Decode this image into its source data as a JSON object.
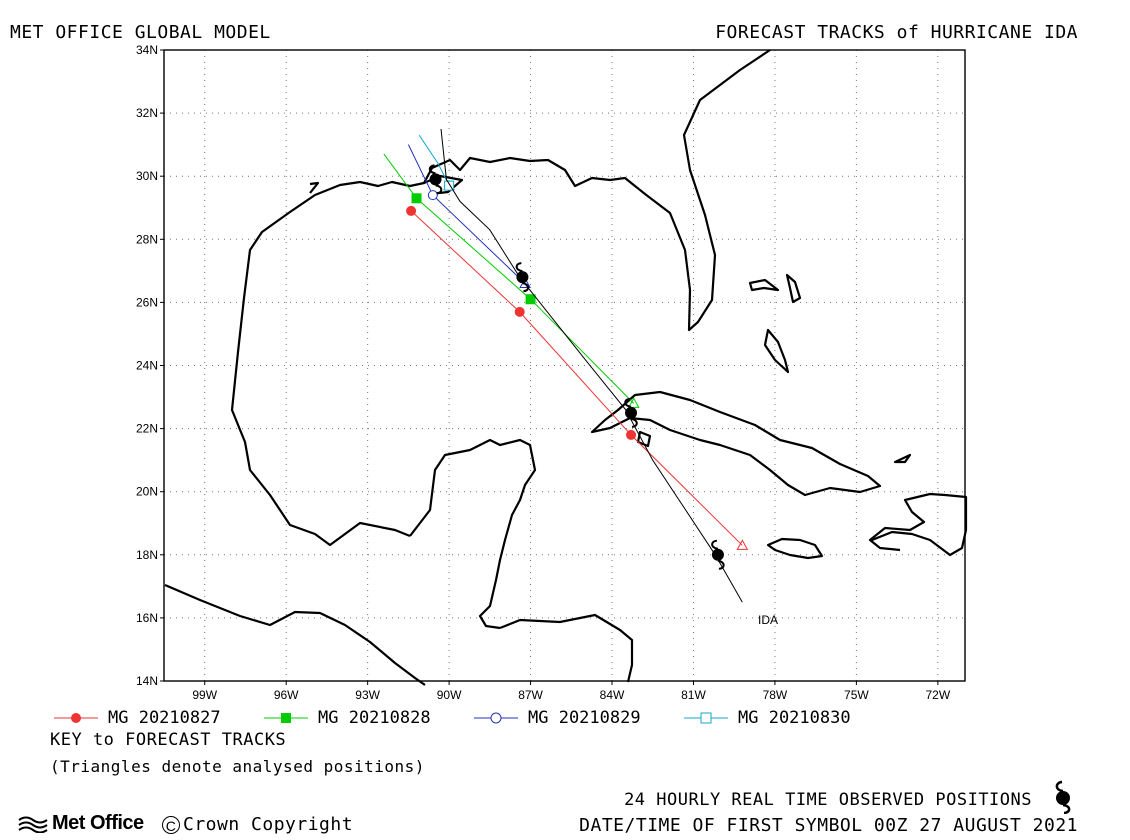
{
  "header": {
    "left_title": "MET OFFICE GLOBAL MODEL",
    "right_title": "FORECAST TRACKS of HURRICANE IDA"
  },
  "map": {
    "lat_labels": [
      "34N",
      "32N",
      "30N",
      "28N",
      "26N",
      "24N",
      "22N",
      "20N",
      "18N",
      "16N",
      "14N"
    ],
    "lon_labels": [
      "99W",
      "96W",
      "93W",
      "90W",
      "87W",
      "84W",
      "81W",
      "78W",
      "75W",
      "72W"
    ],
    "lat_range": [
      14,
      34
    ],
    "lon_range": [
      -100.5,
      -71
    ],
    "grid": "dotted",
    "storm_label": "IDA"
  },
  "legend": {
    "items": [
      {
        "label": "MG 20210827",
        "color": "#ee3333",
        "marker": "filled-circle"
      },
      {
        "label": "MG 20210828",
        "color": "#00cc00",
        "marker": "filled-square"
      },
      {
        "label": "MG 20210829",
        "color": "#2233bb",
        "marker": "open-circle"
      },
      {
        "label": "MG 20210830",
        "color": "#11aacc",
        "marker": "open-square"
      }
    ],
    "key_title": "KEY to FORECAST TRACKS",
    "key_note": "(Triangles denote analysed positions)"
  },
  "footer": {
    "observed_text": "24 HOURLY REAL TIME OBSERVED POSITIONS",
    "datetime_text": "DATE/TIME OF FIRST SYMBOL 00Z 27 AUGUST 2021",
    "logo_text": "Met Office",
    "copyright_text": "Crown Copyright"
  },
  "chart_data": {
    "type": "map-tracks",
    "observed_track": {
      "name": "IDA",
      "color": "#000000",
      "points": [
        [
          -79.2,
          16.5
        ],
        [
          -80.2,
          18.0
        ],
        [
          -82.5,
          21.0
        ],
        [
          -83.5,
          22.6
        ],
        [
          -85.0,
          24.2
        ],
        [
          -87.4,
          26.8
        ],
        [
          -88.5,
          28.3
        ],
        [
          -89.6,
          29.2
        ],
        [
          -90.1,
          29.9
        ],
        [
          -90.3,
          31.5
        ]
      ],
      "daily_positions": [
        [
          -80.1,
          18.0
        ],
        [
          -83.3,
          22.5
        ],
        [
          -87.3,
          26.8
        ],
        [
          -90.5,
          29.9
        ]
      ]
    },
    "forecast_tracks": [
      {
        "name": "MG 20210827",
        "color": "#ee3333",
        "points": [
          [
            -79.2,
            18.3
          ],
          [
            -83.3,
            21.8
          ],
          [
            -87.4,
            25.7
          ],
          [
            -91.4,
            28.9
          ]
        ],
        "markers": [
          [
            -83.3,
            21.8
          ],
          [
            -87.4,
            25.7
          ],
          [
            -91.4,
            28.9
          ]
        ]
      },
      {
        "name": "MG 20210828",
        "color": "#00cc00",
        "points": [
          [
            -83.2,
            22.8
          ],
          [
            -87.0,
            26.1
          ],
          [
            -91.2,
            29.3
          ],
          [
            -92.4,
            30.7
          ]
        ],
        "markers": [
          [
            -87.0,
            26.1
          ],
          [
            -91.2,
            29.3
          ]
        ]
      },
      {
        "name": "MG 20210829",
        "color": "#2233bb",
        "points": [
          [
            -87.2,
            26.6
          ],
          [
            -90.6,
            29.4
          ],
          [
            -91.5,
            31.0
          ]
        ],
        "markers": [
          [
            -90.6,
            29.4
          ]
        ]
      },
      {
        "name": "MG 20210830",
        "color": "#11aacc",
        "points": [
          [
            -90.0,
            29.7
          ],
          [
            -90.4,
            30.4
          ],
          [
            -91.1,
            31.3
          ]
        ],
        "markers": [
          [
            -90.0,
            29.7
          ]
        ]
      }
    ]
  }
}
